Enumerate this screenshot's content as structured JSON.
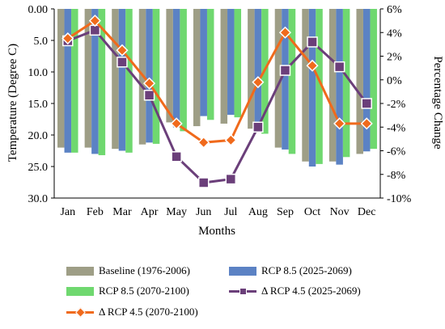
{
  "chart_data": {
    "type": "bar",
    "categories": [
      "Jan",
      "Feb",
      "Mar",
      "Apr",
      "May",
      "Jun",
      "Jul",
      "Aug",
      "Sep",
      "Oct",
      "Nov",
      "Dec"
    ],
    "xlabel": "Months",
    "ylabel": "Temperature (Degree C)",
    "y2label": "Percentage Change",
    "ylim": [
      0,
      30
    ],
    "y_reversed": true,
    "y_ticks": [
      "0.00",
      "5.0",
      "10.0",
      "15.0",
      "20.0",
      "25.0",
      "30.0"
    ],
    "y2lim": [
      -10,
      6
    ],
    "y2_ticks": [
      "6%",
      "4%",
      "2%",
      "0%",
      "-2%",
      "-4%",
      "-6%",
      "-8%",
      "-10%"
    ],
    "grid": false,
    "legend_position": "bottom",
    "bar_series": [
      {
        "name": "Baseline (1976-2006)",
        "color": "#9e9e86",
        "values": [
          22.0,
          22.0,
          22.2,
          21.5,
          18.0,
          18.6,
          18.2,
          19.0,
          22.0,
          24.2,
          24.2,
          23.0
        ]
      },
      {
        "name": "RCP 8.5 (2025-2069)",
        "color": "#5b82c4",
        "values": [
          22.8,
          23.0,
          22.5,
          21.2,
          18.8,
          17.0,
          16.8,
          19.6,
          22.3,
          25.0,
          24.7,
          22.6
        ]
      },
      {
        "name": "RCP 8.5 (2070-2100)",
        "color": "#6fd86f",
        "values": [
          22.8,
          23.2,
          22.8,
          21.4,
          19.4,
          17.6,
          17.2,
          19.8,
          23.0,
          24.6,
          23.5,
          22.2
        ]
      }
    ],
    "line_series": [
      {
        "name": "Δ RCP 4.5 (2025-2069)",
        "color": "#6b3f7a",
        "marker": "square",
        "values": [
          3.3,
          4.2,
          1.5,
          -1.3,
          -6.5,
          -8.7,
          -8.4,
          -4.0,
          0.8,
          3.2,
          1.1,
          -2.0
        ]
      },
      {
        "name": "Δ  RCP 4.5 (2070-2100)",
        "color": "#f06a1c",
        "marker": "diamond",
        "values": [
          3.5,
          5.0,
          2.5,
          -0.3,
          -3.7,
          -5.3,
          -5.1,
          -0.2,
          4.0,
          1.2,
          -3.7,
          -3.7
        ]
      }
    ]
  }
}
